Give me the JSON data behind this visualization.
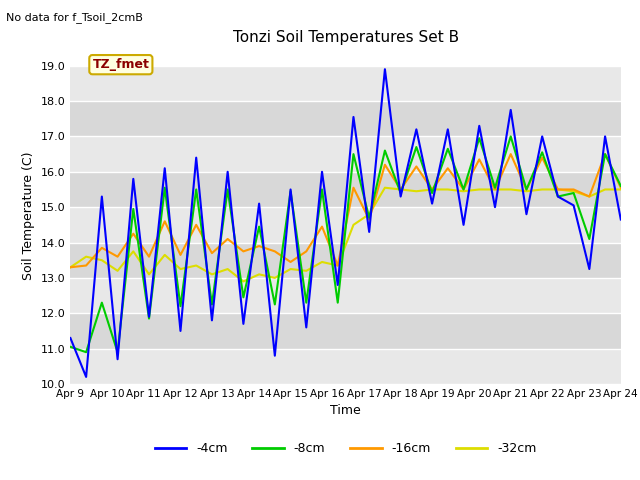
{
  "title": "Tonzi Soil Temperatures Set B",
  "subtitle": "No data for f_Tsoil_2cmB",
  "xlabel": "Time",
  "ylabel": "Soil Temperature (C)",
  "annotation": "TZ_fmet",
  "ylim": [
    10.0,
    19.5
  ],
  "yticks": [
    10.0,
    11.0,
    12.0,
    13.0,
    14.0,
    15.0,
    16.0,
    17.0,
    18.0,
    19.0
  ],
  "legend_labels": [
    "-4cm",
    "-8cm",
    "-16cm",
    "-32cm"
  ],
  "line_colors": [
    "#0000ff",
    "#00cc00",
    "#ff9900",
    "#dddd00"
  ],
  "band_colors": [
    "#e8e8e8",
    "#d8d8d8"
  ],
  "x_tick_labels": [
    "Apr 9",
    "Apr 10",
    "Apr 11",
    "Apr 12",
    "Apr 13",
    "Apr 14",
    "Apr 15",
    "Apr 16",
    "Apr 17",
    "Apr 18",
    "Apr 19",
    "Apr 20",
    "Apr 21",
    "Apr 22",
    "Apr 23",
    "Apr 24"
  ],
  "series_4cm": [
    11.3,
    10.2,
    15.3,
    10.7,
    15.8,
    11.9,
    16.1,
    11.5,
    16.4,
    11.8,
    16.0,
    11.7,
    15.1,
    10.8,
    15.5,
    11.6,
    16.0,
    12.8,
    17.55,
    14.3,
    18.9,
    15.3,
    17.2,
    15.1,
    17.2,
    14.5,
    17.3,
    15.0,
    17.75,
    14.8,
    17.0,
    15.3,
    15.05,
    13.25,
    17.0,
    14.65
  ],
  "series_8cm": [
    11.05,
    10.9,
    12.3,
    10.9,
    14.95,
    11.85,
    15.55,
    12.2,
    15.5,
    12.25,
    15.5,
    12.45,
    14.45,
    12.25,
    15.45,
    12.3,
    15.5,
    12.3,
    16.5,
    14.7,
    16.6,
    15.4,
    16.7,
    15.4,
    16.65,
    15.5,
    16.95,
    15.55,
    17.0,
    15.5,
    16.55,
    15.3,
    15.4,
    14.1,
    16.5,
    15.6
  ],
  "series_16cm": [
    13.3,
    13.35,
    13.85,
    13.6,
    14.25,
    13.6,
    14.6,
    13.65,
    14.5,
    13.7,
    14.1,
    13.75,
    13.9,
    13.75,
    13.45,
    13.75,
    14.45,
    13.35,
    15.55,
    14.65,
    16.2,
    15.5,
    16.15,
    15.5,
    16.1,
    15.5,
    16.35,
    15.5,
    16.5,
    15.5,
    16.4,
    15.5,
    15.5,
    15.3,
    16.5,
    15.55
  ],
  "series_32cm": [
    13.3,
    13.6,
    13.5,
    13.2,
    13.75,
    13.1,
    13.65,
    13.25,
    13.35,
    13.1,
    13.25,
    12.9,
    13.1,
    13.0,
    13.25,
    13.2,
    13.45,
    13.35,
    14.5,
    14.8,
    15.55,
    15.5,
    15.45,
    15.5,
    15.5,
    15.45,
    15.5,
    15.5,
    15.5,
    15.45,
    15.5,
    15.5,
    15.45,
    15.3,
    15.5,
    15.5
  ]
}
